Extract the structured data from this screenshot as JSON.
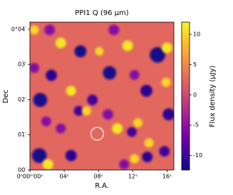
{
  "chart_data": {
    "type": "heatmap",
    "title": "PPI1 Q (96 μm)",
    "xlabel": "R.A.",
    "ylabel": "Dec",
    "colorbar_label": "Flux density (μJy)",
    "colormap": "plasma",
    "xlim": [
      0,
      16.8
    ],
    "ylim": [
      0,
      4.2
    ],
    "clim": [
      -12.4,
      12
    ],
    "xticks": [
      {
        "value": 0,
        "label": "0ʰ00ᵐ00ˢ"
      },
      {
        "value": 4,
        "label": "04ˢ"
      },
      {
        "value": 8,
        "label": "08ˢ"
      },
      {
        "value": 12,
        "label": "12ˢ"
      },
      {
        "value": 16,
        "label": "16ˢ"
      }
    ],
    "yticks": [
      {
        "value": 0,
        "label": "00′"
      },
      {
        "value": 1,
        "label": "01′"
      },
      {
        "value": 2,
        "label": "02′"
      },
      {
        "value": 3,
        "label": "03′"
      },
      {
        "value": 4,
        "label": "0°04′"
      }
    ],
    "cticks": [
      -10,
      -5,
      0,
      5,
      10
    ],
    "background_value": 2.5,
    "sources": [
      {
        "x": 5.9,
        "y": 3.37,
        "value": -12,
        "r": 0.17
      },
      {
        "x": 14.9,
        "y": 3.27,
        "value": -12,
        "r": 0.22
      },
      {
        "x": 9.3,
        "y": 2.76,
        "value": -12,
        "r": 0.19
      },
      {
        "x": 2.5,
        "y": 2.69,
        "value": -11,
        "r": 0.16
      },
      {
        "x": 13.6,
        "y": 2.25,
        "value": -11,
        "r": 0.17
      },
      {
        "x": 1.2,
        "y": 1.99,
        "value": -12,
        "r": 0.2
      },
      {
        "x": 7.3,
        "y": 1.99,
        "value": -10,
        "r": 0.15
      },
      {
        "x": 16.2,
        "y": 1.58,
        "value": -11,
        "r": 0.17
      },
      {
        "x": 1.1,
        "y": 0.41,
        "value": -12,
        "r": 0.21
      },
      {
        "x": 4.8,
        "y": 0.41,
        "value": -11,
        "r": 0.16
      },
      {
        "x": 11.9,
        "y": 1.08,
        "value": -10,
        "r": 0.14
      },
      {
        "x": 15.7,
        "y": 0.53,
        "value": -10,
        "r": 0.15
      },
      {
        "x": 13.7,
        "y": 0.37,
        "value": -11,
        "r": 0.15
      },
      {
        "x": 5.7,
        "y": 1.68,
        "value": -10,
        "r": 0.14
      },
      {
        "x": 3.6,
        "y": 3.61,
        "value": 11,
        "r": 0.15
      },
      {
        "x": 11.4,
        "y": 3.53,
        "value": 11,
        "r": 0.15
      },
      {
        "x": 16.0,
        "y": 3.47,
        "value": 11,
        "r": 0.15
      },
      {
        "x": 4.8,
        "y": 2.25,
        "value": 11,
        "r": 0.14
      },
      {
        "x": 10.2,
        "y": 1.18,
        "value": 11,
        "r": 0.15
      },
      {
        "x": 6.6,
        "y": 1.68,
        "value": 10,
        "r": 0.13
      },
      {
        "x": 15.9,
        "y": 2.49,
        "value": 10,
        "r": 0.13
      },
      {
        "x": 12.6,
        "y": 1.34,
        "value": 10,
        "r": 0.13
      },
      {
        "x": 13.9,
        "y": 0.77,
        "value": 10,
        "r": 0.13
      },
      {
        "x": 0.5,
        "y": 3.98,
        "value": 10,
        "r": 0.13
      },
      {
        "x": 8.1,
        "y": 3.37,
        "value": 10,
        "r": 0.12
      },
      {
        "x": 2.1,
        "y": 0.16,
        "value": 11,
        "r": 0.15
      },
      {
        "x": 12.2,
        "y": 0.32,
        "value": 10,
        "r": 0.13
      },
      {
        "x": 2.3,
        "y": 3.98,
        "value": -6,
        "r": 0.15
      },
      {
        "x": 9.8,
        "y": 3.98,
        "value": -6,
        "r": 0.15
      },
      {
        "x": 0.5,
        "y": 2.9,
        "value": -6,
        "r": 0.14
      },
      {
        "x": 12.2,
        "y": 2.7,
        "value": -6,
        "r": 0.14
      },
      {
        "x": 9.1,
        "y": 1.58,
        "value": -6,
        "r": 0.15
      },
      {
        "x": 3.6,
        "y": 1.18,
        "value": -6,
        "r": 0.14
      },
      {
        "x": 11.0,
        "y": 0.16,
        "value": -6,
        "r": 0.14
      },
      {
        "x": 1.9,
        "y": 1.38,
        "value": -6,
        "r": 0.14
      }
    ],
    "marker": {
      "x": 7.85,
      "y": 1.03,
      "r": 0.18
    }
  }
}
